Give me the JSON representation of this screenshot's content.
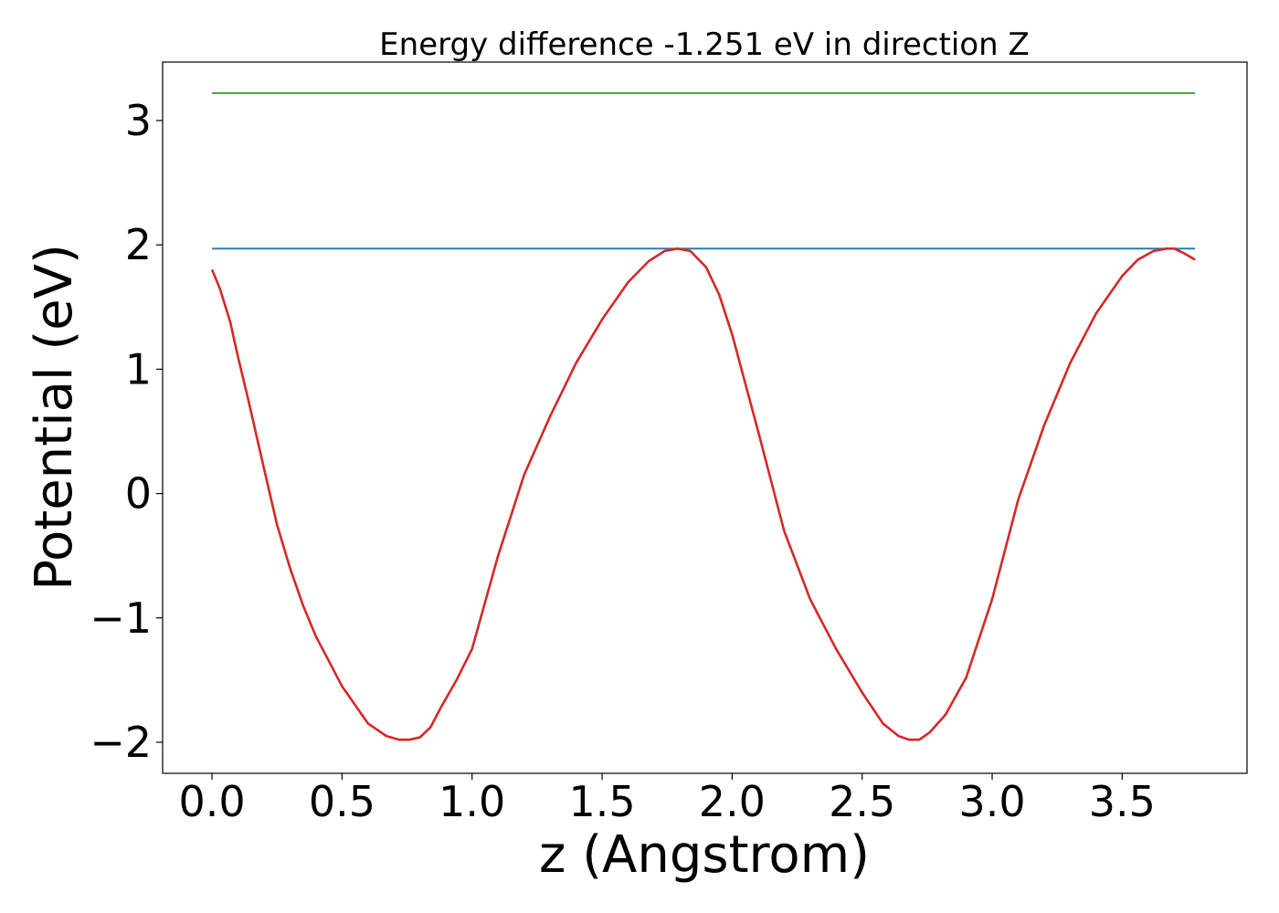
{
  "chart_data": {
    "type": "line",
    "title": "Energy difference -1.251 eV in direction Z",
    "xlabel": "z (Angstrom)",
    "ylabel": "Potential (eV)",
    "xlim": [
      -0.19,
      3.98
    ],
    "ylim": [
      -2.25,
      3.47
    ],
    "xticks": [
      0.0,
      0.5,
      1.0,
      1.5,
      2.0,
      2.5,
      3.0,
      3.5
    ],
    "xtick_labels": [
      "0.0",
      "0.5",
      "1.0",
      "1.5",
      "2.0",
      "2.5",
      "3.0",
      "3.5"
    ],
    "yticks": [
      -2,
      -1,
      0,
      1,
      2,
      3
    ],
    "ytick_labels": [
      "−2",
      "−1",
      "0",
      "1",
      "2",
      "3"
    ],
    "grid": false,
    "series": [
      {
        "color": "#2ca02c",
        "x": [
          0.0,
          3.78
        ],
        "y": [
          3.22,
          3.22
        ]
      },
      {
        "color": "#1f77b4",
        "x": [
          0.0,
          3.78
        ],
        "y": [
          1.97,
          1.97
        ]
      },
      {
        "color": "#d62728",
        "x": [
          0.0,
          0.03,
          0.07,
          0.1,
          0.14,
          0.2,
          0.25,
          0.3,
          0.35,
          0.4,
          0.5,
          0.6,
          0.67,
          0.72,
          0.76,
          0.8,
          0.84,
          0.88,
          0.94,
          1.0,
          1.1,
          1.2,
          1.3,
          1.4,
          1.5,
          1.6,
          1.68,
          1.74,
          1.79,
          1.84,
          1.9,
          1.95,
          2.0,
          2.1,
          2.2,
          2.3,
          2.4,
          2.5,
          2.58,
          2.64,
          2.68,
          2.72,
          2.76,
          2.82,
          2.9,
          3.0,
          3.1,
          3.2,
          3.3,
          3.4,
          3.5,
          3.56,
          3.62,
          3.67,
          3.7,
          3.74,
          3.78
        ],
        "y": [
          1.8,
          1.65,
          1.38,
          1.1,
          0.75,
          0.2,
          -0.25,
          -0.6,
          -0.9,
          -1.15,
          -1.55,
          -1.85,
          -1.95,
          -1.98,
          -1.98,
          -1.96,
          -1.88,
          -1.72,
          -1.5,
          -1.25,
          -0.5,
          0.15,
          0.62,
          1.05,
          1.4,
          1.7,
          1.87,
          1.95,
          1.97,
          1.95,
          1.82,
          1.6,
          1.28,
          0.5,
          -0.3,
          -0.85,
          -1.25,
          -1.6,
          -1.85,
          -1.95,
          -1.98,
          -1.98,
          -1.92,
          -1.78,
          -1.48,
          -0.85,
          -0.05,
          0.55,
          1.05,
          1.45,
          1.75,
          1.88,
          1.95,
          1.97,
          1.97,
          1.93,
          1.88
        ]
      }
    ]
  }
}
